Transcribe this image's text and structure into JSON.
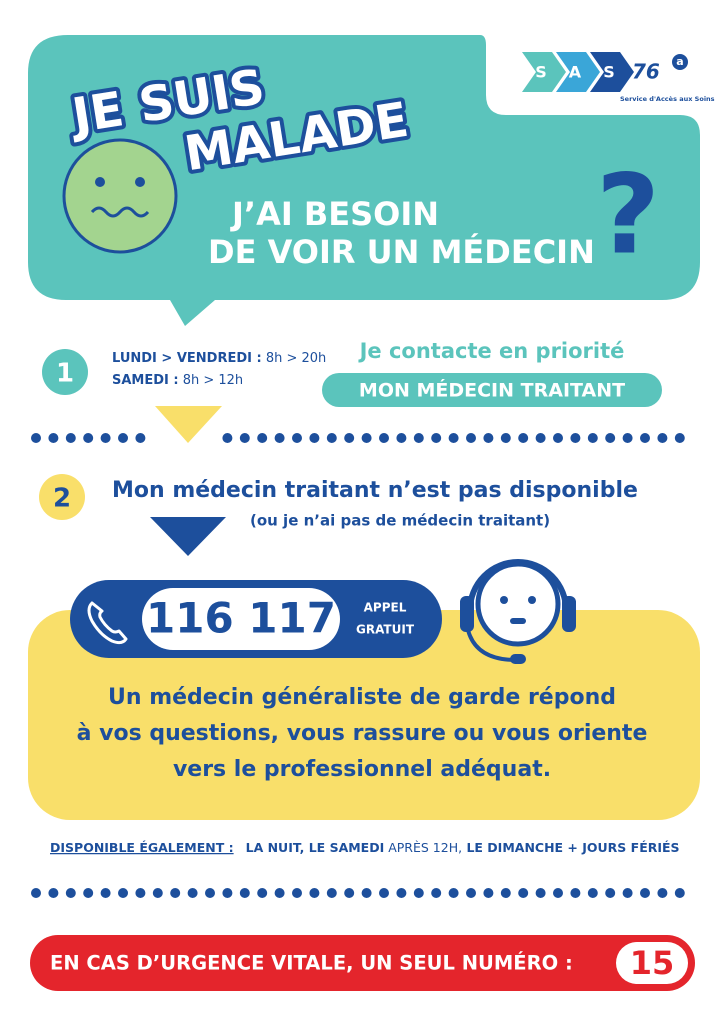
{
  "logo": {
    "letters": [
      "S",
      "A",
      "S"
    ],
    "number": "76",
    "badge": "a",
    "tagline": "Service d'Accès aux Soins"
  },
  "header": {
    "title_lines": [
      "JE SUIS",
      "MALADE"
    ],
    "subtitle_lines": [
      "J’AI BESOIN",
      "DE VOIR UN MÉDECIN"
    ],
    "question_mark": "?"
  },
  "step1": {
    "number": "1",
    "hours": [
      {
        "days": "LUNDI > VENDREDI :",
        "time": " 8h > 20h"
      },
      {
        "days": "SAMEDI :",
        "time": " 8h > 12h"
      }
    ],
    "action": "Je contacte en priorité",
    "contact": "MON MÉDECIN TRAITANT"
  },
  "step2": {
    "number": "2",
    "title": "Mon médecin traitant n’est pas disponible",
    "note": "(ou je n’ai pas de médecin traitant)"
  },
  "phone": {
    "number": "116 117",
    "label_lines": [
      "APPEL",
      "GRATUIT"
    ]
  },
  "body": {
    "lines": [
      "Un médecin généraliste de garde répond",
      "à vos questions, vous rassure ou vous oriente",
      "vers le professionnel adéquat."
    ]
  },
  "availability": {
    "label": "DISPONIBLE ÉGALEMENT :",
    "parts": [
      "LA NUIT, LE SAMEDI",
      " APRÈS 12H,",
      " LE DIMANCHE + JOURS FÉRIÉS"
    ]
  },
  "emergency": {
    "text": "EN CAS D’URGENCE VITALE, UN SEUL NUMÉRO :",
    "number": "15"
  }
}
